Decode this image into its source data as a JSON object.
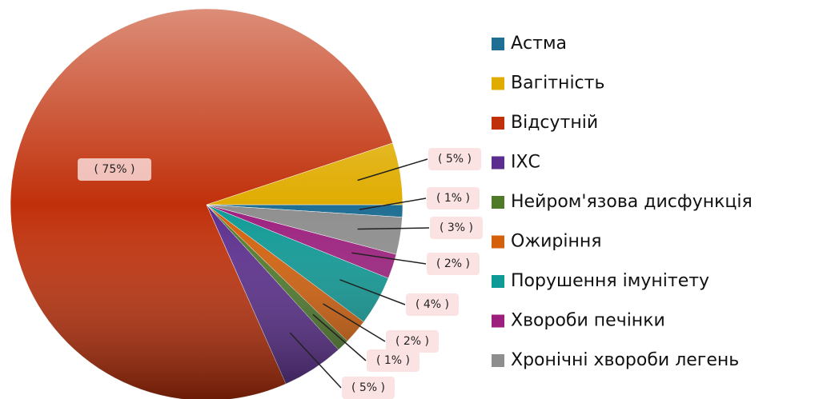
{
  "chart_data": {
    "type": "pie",
    "categories": [
      "Астма",
      "Вагітність",
      "Відсутній",
      "ІХС",
      "Нейром'язова дисфункція",
      "Ожиріння",
      "Порушення імунітету",
      "Хвороби печінки",
      "Хронічні хвороби легень"
    ],
    "values": [
      1,
      5,
      75,
      5,
      1,
      2,
      4,
      2,
      3
    ],
    "value_labels": [
      "( 1% )",
      "( 5% )",
      "( 75% )",
      "( 5% )",
      "( 1% )",
      "( 2% )",
      "( 4% )",
      "( 2% )",
      "( 3% )"
    ],
    "colors": [
      "#1f6e94",
      "#e0ac00",
      "#c0300a",
      "#5b2d8e",
      "#4e7a2a",
      "#d4600a",
      "#0e9a96",
      "#9c1f7e",
      "#8e8e8e"
    ],
    "legend": "right"
  }
}
